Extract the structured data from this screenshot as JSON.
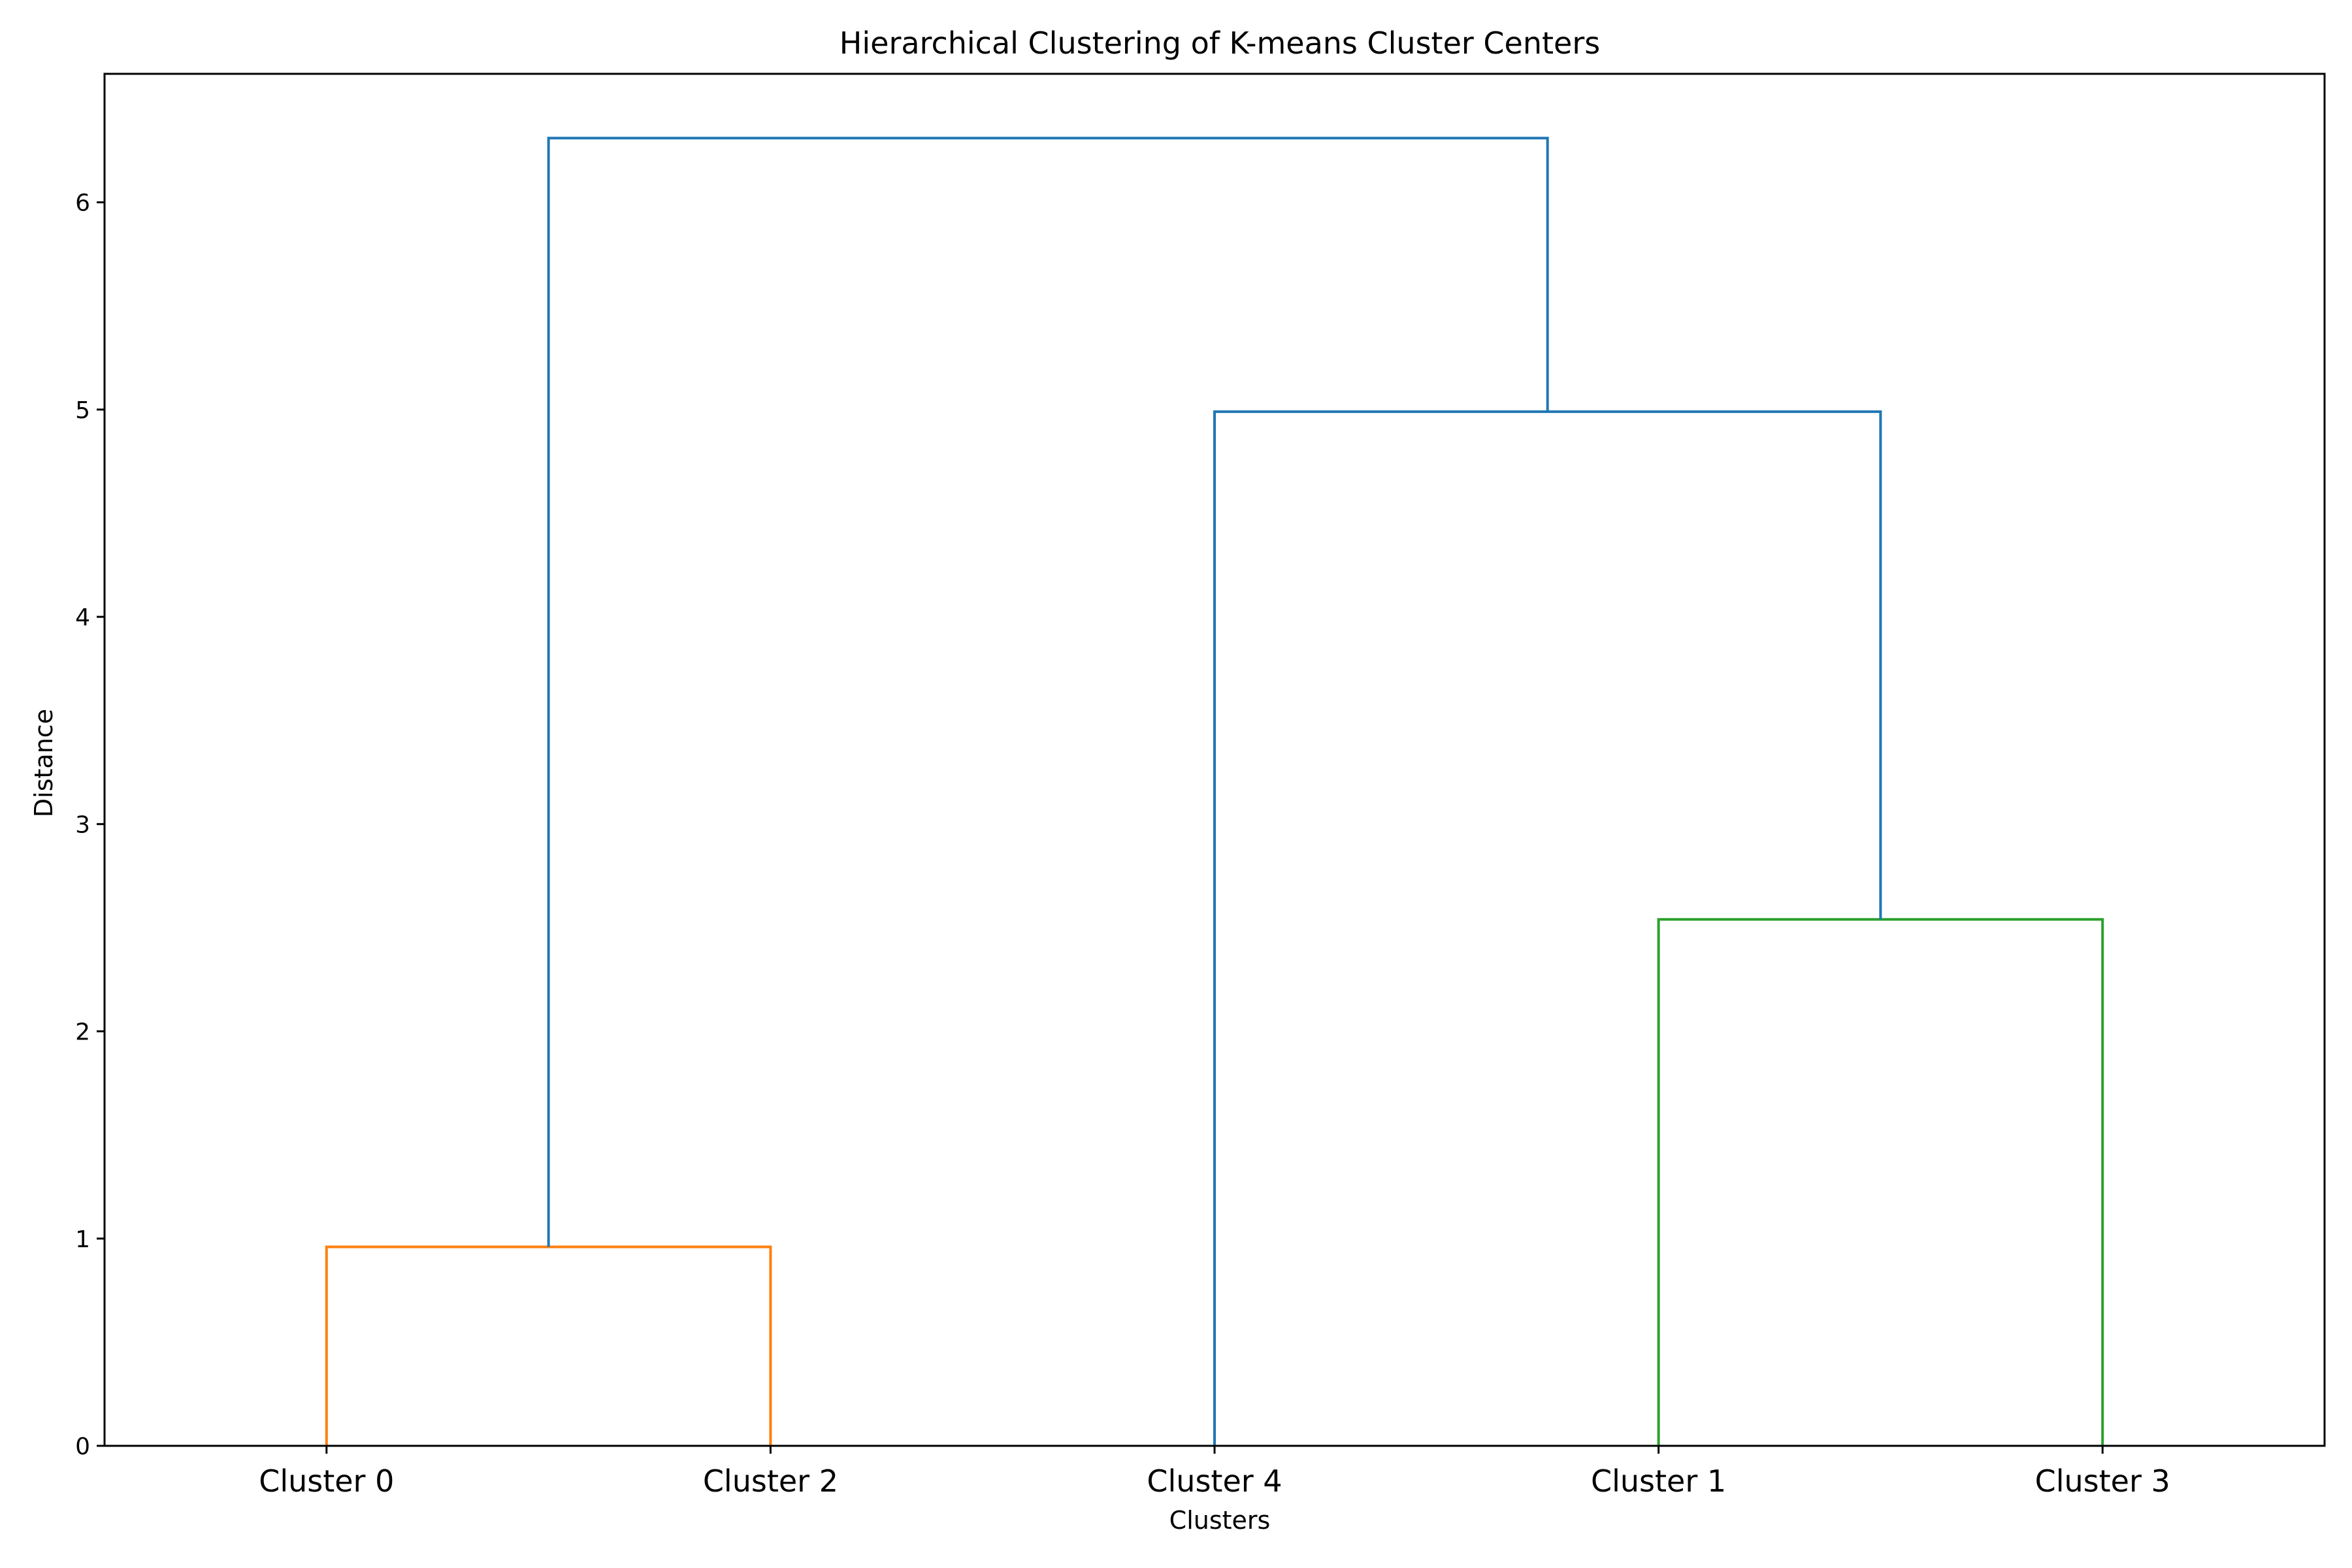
{
  "chart_data": {
    "type": "dendrogram",
    "title": "Hierarchical Clustering of K-means Cluster Centers",
    "xlabel": "Clusters",
    "ylabel": "Distance",
    "leaves": [
      "Cluster 0",
      "Cluster 2",
      "Cluster 4",
      "Cluster 1",
      "Cluster 3"
    ],
    "ylim": [
      0,
      6.62
    ],
    "yticks": [
      0,
      1,
      2,
      3,
      4,
      5,
      6
    ],
    "grid": false,
    "merges": [
      {
        "left": "Cluster 0",
        "right": "Cluster 2",
        "height": 0.96,
        "color": "#ff7f0e"
      },
      {
        "left": "Cluster 1",
        "right": "Cluster 3",
        "height": 2.54,
        "color": "#2ca02c"
      },
      {
        "left": "Cluster 4",
        "right": "(Cluster 1, Cluster 3)",
        "height": 4.99,
        "color": "#1f77b4"
      },
      {
        "left": "(Cluster 0, Cluster 2)",
        "right": "(Cluster 4, (Cluster 1, Cluster 3))",
        "height": 6.31,
        "color": "#1f77b4"
      }
    ]
  }
}
